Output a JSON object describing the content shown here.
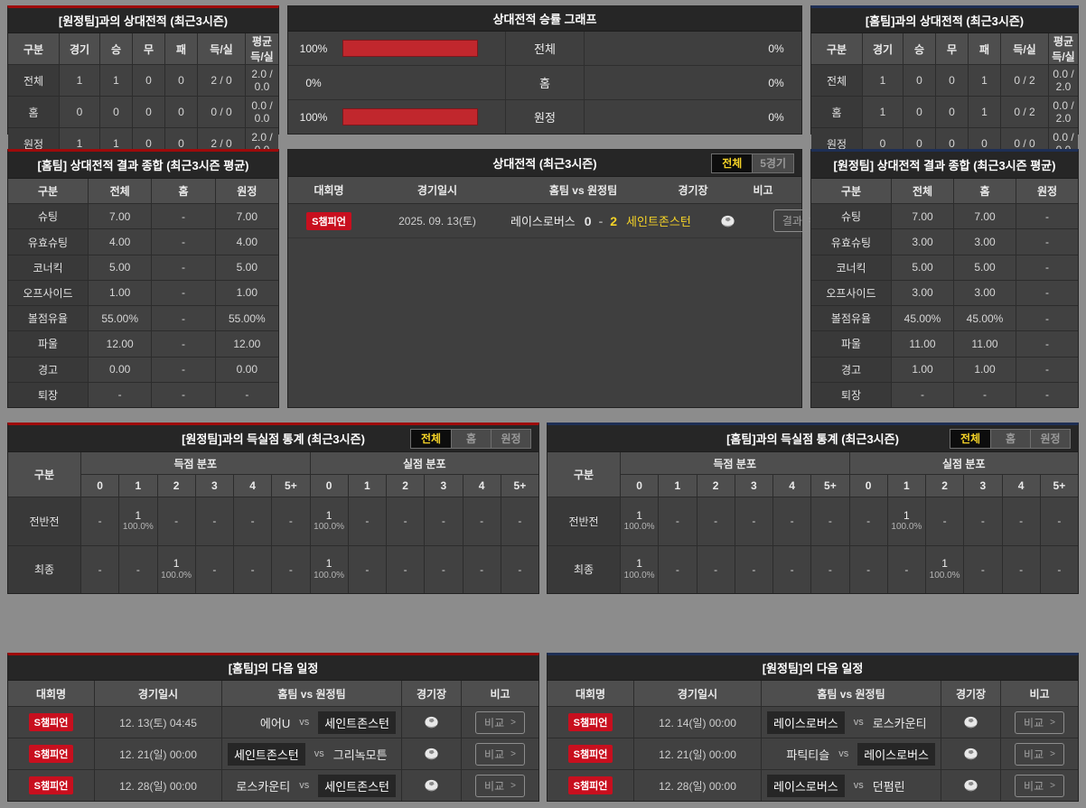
{
  "colors": {
    "page_bg": "#8c8c8c",
    "panel_bg": "#3f3f3f",
    "accent_red": "#9e0a0a",
    "accent_blue": "#1e2f55",
    "bar_red": "#c1272d",
    "badge_red": "#c80f1e",
    "highlight_yellow": "#f5d327"
  },
  "record_vs_away": {
    "title": "[원정팀]과의 상대전적 (최근3시즌)",
    "headers": [
      "구분",
      "경기",
      "승",
      "무",
      "패",
      "득/실",
      "평균 득/실"
    ],
    "rows": [
      [
        "전체",
        "1",
        "1",
        "0",
        "0",
        "2 / 0",
        "2.0 / 0.0"
      ],
      [
        "홈",
        "0",
        "0",
        "0",
        "0",
        "0 / 0",
        "0.0 / 0.0"
      ],
      [
        "원정",
        "1",
        "1",
        "0",
        "0",
        "2 / 0",
        "2.0 / 0.0"
      ]
    ]
  },
  "win_graph": {
    "title": "상대전적 승률 그래프",
    "rows": [
      {
        "left_pct": 100,
        "left_label": "100%",
        "label": "전체",
        "right_pct": 0,
        "right_label": "0%"
      },
      {
        "left_pct": 0,
        "left_label": "0%",
        "label": "홈",
        "right_pct": 0,
        "right_label": "0%"
      },
      {
        "left_pct": 100,
        "left_label": "100%",
        "label": "원정",
        "right_pct": 0,
        "right_label": "0%"
      }
    ]
  },
  "record_vs_home": {
    "title": "[홈팀]과의 상대전적 (최근3시즌)",
    "headers": [
      "구분",
      "경기",
      "승",
      "무",
      "패",
      "득/실",
      "평균 득/실"
    ],
    "rows": [
      [
        "전체",
        "1",
        "0",
        "0",
        "1",
        "0 / 2",
        "0.0 / 2.0"
      ],
      [
        "홈",
        "1",
        "0",
        "0",
        "1",
        "0 / 2",
        "0.0 / 2.0"
      ],
      [
        "원정",
        "0",
        "0",
        "0",
        "0",
        "0 / 0",
        "0.0 / 0.0"
      ]
    ]
  },
  "home_summary": {
    "title": "[홈팀] 상대전적 결과 종합 (최근3시즌 평균)",
    "headers": [
      "구분",
      "전체",
      "홈",
      "원정"
    ],
    "rows": [
      [
        "슈팅",
        "7.00",
        "-",
        "7.00"
      ],
      [
        "유효슈팅",
        "4.00",
        "-",
        "4.00"
      ],
      [
        "코너킥",
        "5.00",
        "-",
        "5.00"
      ],
      [
        "오프사이드",
        "1.00",
        "-",
        "1.00"
      ],
      [
        "볼점유율",
        "55.00%",
        "-",
        "55.00%"
      ],
      [
        "파울",
        "12.00",
        "-",
        "12.00"
      ],
      [
        "경고",
        "0.00",
        "-",
        "0.00"
      ],
      [
        "퇴장",
        "-",
        "-",
        "-"
      ]
    ]
  },
  "h2h": {
    "title": "상대전적 (최근3시즌)",
    "tabs": [
      {
        "label": "전체",
        "selected": true
      },
      {
        "label": "5경기",
        "selected": false
      }
    ],
    "headers": [
      "대회명",
      "경기일시",
      "홈팀  vs  원정팀",
      "경기장",
      "비고"
    ],
    "matches": [
      {
        "league": "S챔피언",
        "date": "2025. 09. 13(토)",
        "home": "레이스로버스",
        "home_score": "0",
        "away_score": "2",
        "away": "세인트존스턴",
        "winner": "away",
        "note": "결과"
      }
    ]
  },
  "away_summary": {
    "title": "[원정팀] 상대전적 결과 종합 (최근3시즌 평균)",
    "headers": [
      "구분",
      "전체",
      "홈",
      "원정"
    ],
    "rows": [
      [
        "슈팅",
        "7.00",
        "7.00",
        "-"
      ],
      [
        "유효슈팅",
        "3.00",
        "3.00",
        "-"
      ],
      [
        "코너킥",
        "5.00",
        "5.00",
        "-"
      ],
      [
        "오프사이드",
        "3.00",
        "3.00",
        "-"
      ],
      [
        "볼점유율",
        "45.00%",
        "45.00%",
        "-"
      ],
      [
        "파울",
        "11.00",
        "11.00",
        "-"
      ],
      [
        "경고",
        "1.00",
        "1.00",
        "-"
      ],
      [
        "퇴장",
        "-",
        "-",
        "-"
      ]
    ]
  },
  "home_goal_stats": {
    "title": "[원정팀]과의 득실점 통계 (최근3시즌)",
    "tabs": [
      {
        "label": "전체",
        "selected": true
      },
      {
        "label": "홈",
        "selected": false
      },
      {
        "label": "원정",
        "selected": false
      }
    ],
    "row_header": "구분",
    "group_headers": [
      "득점 분포",
      "실점 분포"
    ],
    "cols": [
      "0",
      "1",
      "2",
      "3",
      "4",
      "5+"
    ],
    "rows": [
      {
        "label": "전반전",
        "goals": [
          null,
          {
            "count": "1",
            "pct": "100.0%"
          },
          null,
          null,
          null,
          null
        ],
        "conceded": [
          {
            "count": "1",
            "pct": "100.0%"
          },
          null,
          null,
          null,
          null,
          null
        ]
      },
      {
        "label": "최종",
        "goals": [
          null,
          null,
          {
            "count": "1",
            "pct": "100.0%"
          },
          null,
          null,
          null
        ],
        "conceded": [
          {
            "count": "1",
            "pct": "100.0%"
          },
          null,
          null,
          null,
          null,
          null
        ]
      }
    ]
  },
  "away_goal_stats": {
    "title": "[홈팀]과의 득실점 통계 (최근3시즌)",
    "tabs": [
      {
        "label": "전체",
        "selected": true
      },
      {
        "label": "홈",
        "selected": false
      },
      {
        "label": "원정",
        "selected": false
      }
    ],
    "row_header": "구분",
    "group_headers": [
      "득점 분포",
      "실점 분포"
    ],
    "cols": [
      "0",
      "1",
      "2",
      "3",
      "4",
      "5+"
    ],
    "rows": [
      {
        "label": "전반전",
        "goals": [
          {
            "count": "1",
            "pct": "100.0%"
          },
          null,
          null,
          null,
          null,
          null
        ],
        "conceded": [
          null,
          {
            "count": "1",
            "pct": "100.0%"
          },
          null,
          null,
          null,
          null
        ]
      },
      {
        "label": "최종",
        "goals": [
          {
            "count": "1",
            "pct": "100.0%"
          },
          null,
          null,
          null,
          null,
          null
        ],
        "conceded": [
          null,
          null,
          {
            "count": "1",
            "pct": "100.0%"
          },
          null,
          null,
          null
        ]
      }
    ]
  },
  "home_schedule": {
    "title": "[홈팀]의 다음 일정",
    "headers": [
      "대회명",
      "경기일시",
      "홈팀  vs  원정팀",
      "경기장",
      "비고"
    ],
    "rows": [
      {
        "league": "S챔피언",
        "datetime": "12. 13(토) 04:45",
        "home": "에어U",
        "away": "세인트존스턴",
        "highlight": "away",
        "note": "비교"
      },
      {
        "league": "S챔피언",
        "datetime": "12. 21(일) 00:00",
        "home": "세인트존스턴",
        "away": "그리녹모튼",
        "highlight": "home",
        "note": "비교"
      },
      {
        "league": "S챔피언",
        "datetime": "12. 28(일) 00:00",
        "home": "로스카운티",
        "away": "세인트존스턴",
        "highlight": "away",
        "note": "비교"
      }
    ]
  },
  "away_schedule": {
    "title": "[원정팀]의 다음 일정",
    "headers": [
      "대회명",
      "경기일시",
      "홈팀  vs  원정팀",
      "경기장",
      "비고"
    ],
    "rows": [
      {
        "league": "S챔피언",
        "datetime": "12. 14(일) 00:00",
        "home": "레이스로버스",
        "away": "로스카운티",
        "highlight": "home",
        "note": "비교"
      },
      {
        "league": "S챔피언",
        "datetime": "12. 21(일) 00:00",
        "home": "파틱티슬",
        "away": "레이스로버스",
        "highlight": "away",
        "note": "비교"
      },
      {
        "league": "S챔피언",
        "datetime": "12. 28(일) 00:00",
        "home": "레이스로버스",
        "away": "던펌린",
        "highlight": "home",
        "note": "비교"
      }
    ]
  }
}
